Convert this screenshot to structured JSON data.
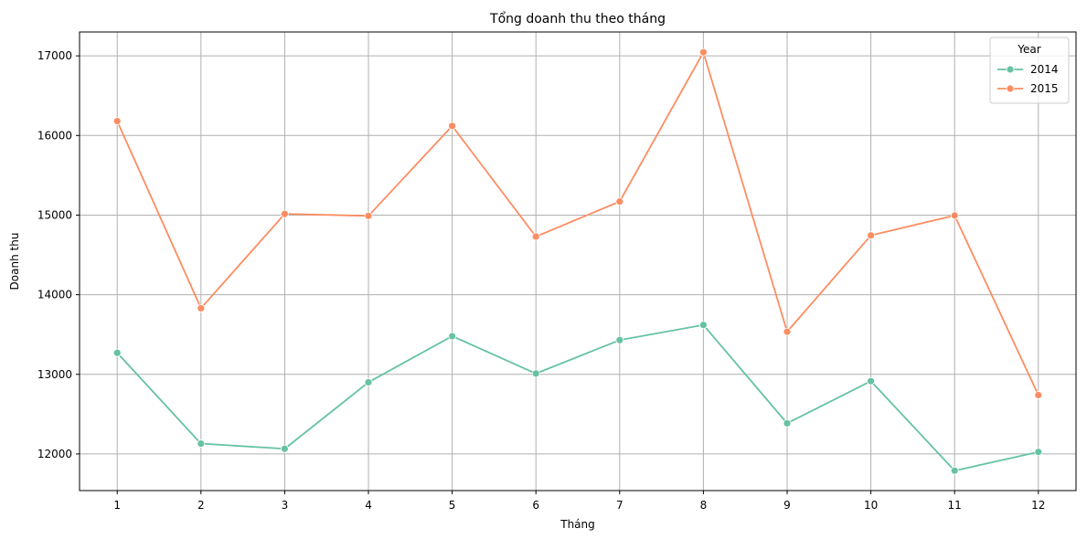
{
  "chart_data": {
    "type": "line",
    "title": "Tổng doanh thu theo tháng",
    "xlabel": "Tháng",
    "ylabel": "Doanh thu",
    "x": [
      1,
      2,
      3,
      4,
      5,
      6,
      7,
      8,
      9,
      10,
      11,
      12
    ],
    "x_tick_labels": [
      "1",
      "2",
      "3",
      "4",
      "5",
      "6",
      "7",
      "8",
      "9",
      "10",
      "11",
      "12"
    ],
    "y_ticks": [
      12000,
      13000,
      14000,
      15000,
      16000,
      17000
    ],
    "y_tick_labels": [
      "12000",
      "13000",
      "14000",
      "15000",
      "16000",
      "17000"
    ],
    "xlim": [
      0.55,
      12.45
    ],
    "ylim": [
      11540,
      17300
    ],
    "grid": true,
    "legend": {
      "title": "Year",
      "position": "top-right"
    },
    "series": [
      {
        "name": "2014",
        "color": "#66c2a5",
        "values": [
          13270,
          12130,
          12065,
          12900,
          13480,
          13010,
          13430,
          13620,
          12385,
          12915,
          11790,
          12025
        ]
      },
      {
        "name": "2015",
        "color": "#fc8d62",
        "values": [
          16180,
          13830,
          15015,
          14990,
          16120,
          14730,
          15170,
          17045,
          13535,
          14745,
          14995,
          12740
        ]
      }
    ]
  }
}
